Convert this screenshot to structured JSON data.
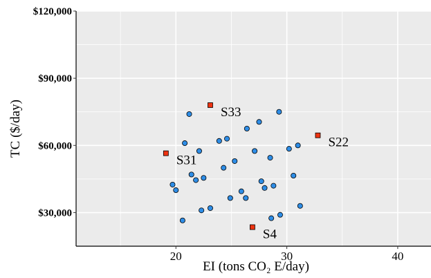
{
  "chart_data": {
    "type": "scatter",
    "xlabel": "EI (tons CO₂ E/day)",
    "ylabel": "TC ($/day)",
    "xlim": [
      11,
      43
    ],
    "ylim": [
      15000,
      120000
    ],
    "x_ticks": [
      20,
      30,
      40
    ],
    "y_ticks": [
      30000,
      60000,
      90000,
      120000
    ],
    "y_tick_labels": [
      "$30,000",
      "$60,000",
      "$90,000",
      "$120,000"
    ],
    "grid": true,
    "background_color": "#ebebeb",
    "grid_color": "#ffffff",
    "series": [
      {
        "marker": "circle",
        "color": "#2e8de6",
        "points": [
          {
            "x": 21.2,
            "y": 74000
          },
          {
            "x": 29.3,
            "y": 75000
          },
          {
            "x": 27.5,
            "y": 70500
          },
          {
            "x": 26.4,
            "y": 67500
          },
          {
            "x": 24.6,
            "y": 63000
          },
          {
            "x": 23.9,
            "y": 62000
          },
          {
            "x": 20.8,
            "y": 61000
          },
          {
            "x": 31.0,
            "y": 60000
          },
          {
            "x": 30.2,
            "y": 58500
          },
          {
            "x": 22.1,
            "y": 57500
          },
          {
            "x": 27.1,
            "y": 57500
          },
          {
            "x": 28.5,
            "y": 54500
          },
          {
            "x": 25.3,
            "y": 53000
          },
          {
            "x": 24.3,
            "y": 50000
          },
          {
            "x": 21.4,
            "y": 47000
          },
          {
            "x": 30.6,
            "y": 46500
          },
          {
            "x": 22.5,
            "y": 45500
          },
          {
            "x": 21.8,
            "y": 44500
          },
          {
            "x": 27.7,
            "y": 44000
          },
          {
            "x": 19.7,
            "y": 42500
          },
          {
            "x": 28.8,
            "y": 42000
          },
          {
            "x": 28.0,
            "y": 41000
          },
          {
            "x": 20.0,
            "y": 40000
          },
          {
            "x": 25.9,
            "y": 39500
          },
          {
            "x": 24.9,
            "y": 36500
          },
          {
            "x": 26.3,
            "y": 36500
          },
          {
            "x": 31.2,
            "y": 33000
          },
          {
            "x": 23.1,
            "y": 32000
          },
          {
            "x": 22.3,
            "y": 31000
          },
          {
            "x": 29.4,
            "y": 29000
          },
          {
            "x": 28.6,
            "y": 27500
          },
          {
            "x": 20.6,
            "y": 26500
          }
        ]
      },
      {
        "marker": "square",
        "color": "#ee3311",
        "points": [
          {
            "x": 23.1,
            "y": 78000,
            "label": "S33"
          },
          {
            "x": 32.8,
            "y": 64500,
            "label": "S22"
          },
          {
            "x": 19.1,
            "y": 56500,
            "label": "S31"
          },
          {
            "x": 26.9,
            "y": 23500,
            "label": "S4"
          }
        ]
      }
    ]
  }
}
